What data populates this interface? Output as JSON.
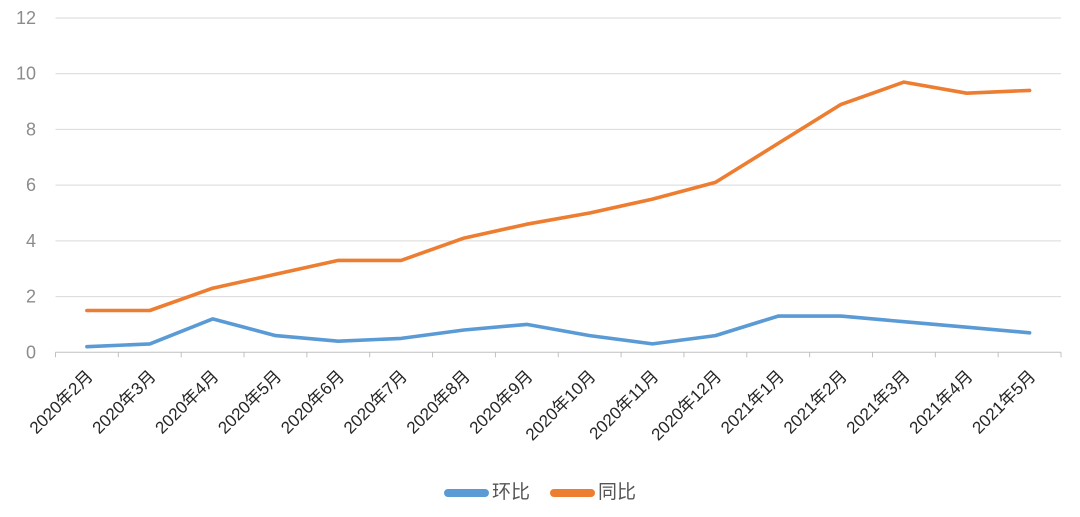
{
  "chart_data": {
    "type": "line",
    "title": "",
    "categories": [
      "2020年2月",
      "2020年3月",
      "2020年4月",
      "2020年5月",
      "2020年6月",
      "2020年7月",
      "2020年8月",
      "2020年9月",
      "2020年10月",
      "2020年11月",
      "2020年12月",
      "2021年1月",
      "2021年2月",
      "2021年3月",
      "2021年4月",
      "2021年5月"
    ],
    "series": [
      {
        "name": "环比",
        "color": "#5B9BD5",
        "values": [
          0.2,
          0.3,
          1.2,
          0.6,
          0.4,
          0.5,
          0.8,
          1.0,
          0.6,
          0.3,
          0.6,
          1.3,
          1.3,
          1.1,
          0.9,
          0.7
        ]
      },
      {
        "name": "同比",
        "color": "#ED7D31",
        "values": [
          1.5,
          1.5,
          2.3,
          2.8,
          3.3,
          3.3,
          4.1,
          4.6,
          5.0,
          5.5,
          6.1,
          7.5,
          8.9,
          9.7,
          9.3,
          9.4
        ]
      }
    ],
    "xlabel": "",
    "ylabel": "",
    "ylim": [
      0,
      12
    ],
    "ytick_step": 2,
    "y_tick_labels": [
      "0",
      "2",
      "4",
      "6",
      "8",
      "10",
      "12"
    ],
    "grid": true,
    "legend_position": "bottom"
  },
  "colors": {
    "grid_line": "#D9D9D9",
    "axis_line": "#C0C0C0",
    "y_tick_label": "#8C8C8C",
    "x_tick_label": "#262626",
    "legend_text": "#555555",
    "background": "#FFFFFF"
  }
}
